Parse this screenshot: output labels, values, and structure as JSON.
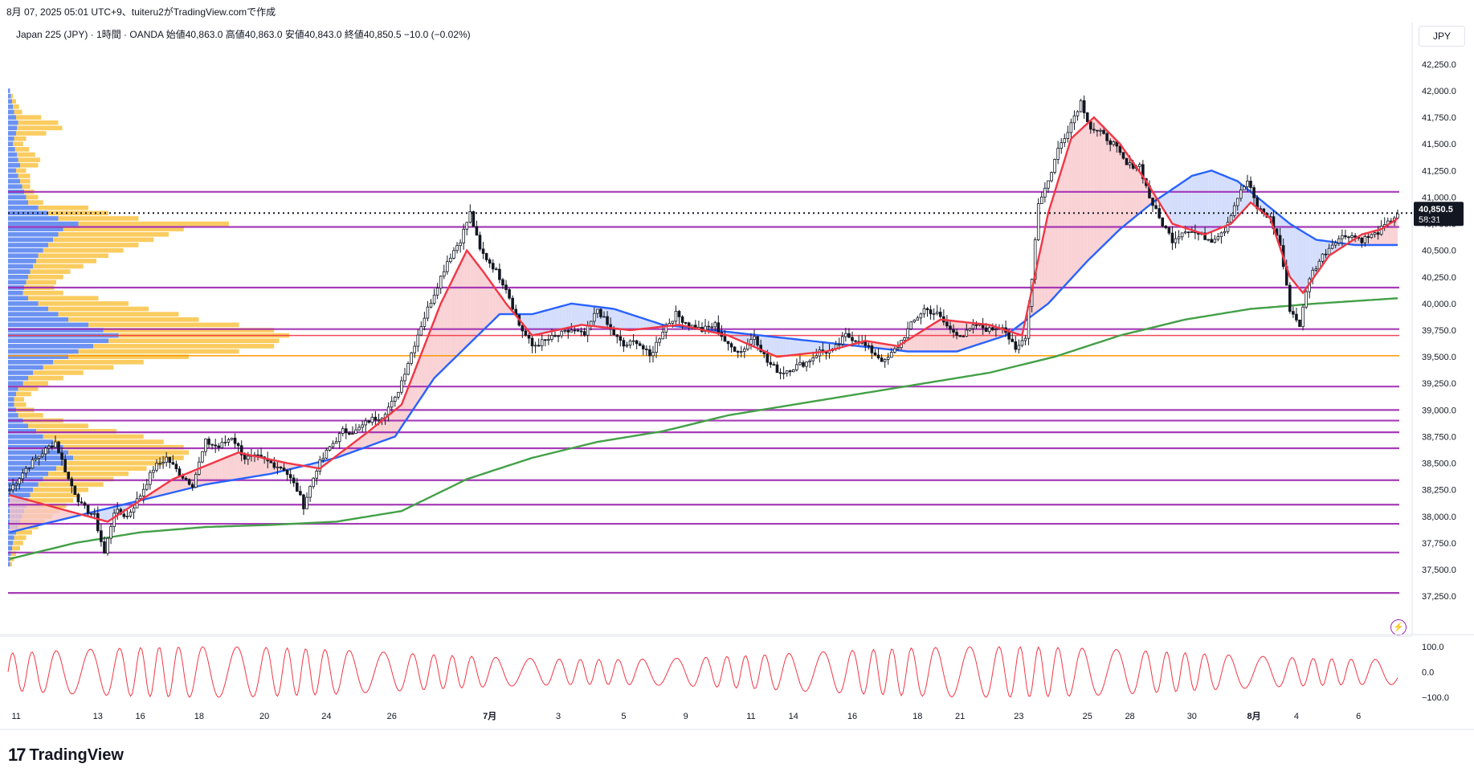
{
  "header": {
    "caption": "8月 07, 2025 05:01 UTC+9、tuiteru2がTradingView.comで作成",
    "info": "Japan 225 (JPY) · 1時間 · OANDA  始値40,863.0  高値40,863.0  安値40,843.0  終値40,850.5  −10.0 (−0.02%)"
  },
  "currency": "JPY",
  "logo": {
    "mark": "17",
    "word": "TradingView"
  },
  "colors": {
    "candle": "#131722",
    "ma_red": "#f23645",
    "ma_blue": "#2962ff",
    "ma_green": "#43a047",
    "fill_red": "#f8c7cb",
    "fill_blue": "#c9d6fb",
    "vp_blue": "#5b86f0",
    "vp_orange": "#f9c74f",
    "hline_purple": "#9c27b0",
    "hline_red": "#f23645",
    "hline_orange": "#ff9800",
    "osc": "#f23645",
    "price_tag": "#131722"
  },
  "chart_data": {
    "type": "candlestick",
    "symbol": "Japan 225 (JPY)",
    "timeframe": "1時間",
    "last_price_label": "40,850.5",
    "countdown": "58:31",
    "ylim": [
      37100,
      42400
    ],
    "y_ticks": [
      "42,250.0",
      "42,000.0",
      "41,750.0",
      "41,500.0",
      "41,250.0",
      "41,000.0",
      "40,750.0",
      "40,500.0",
      "40,250.0",
      "40,000.0",
      "39,750.0",
      "39,500.0",
      "39,250.0",
      "39,000.0",
      "38,750.0",
      "38,500.0",
      "38,250.0",
      "38,000.0",
      "37,750.0",
      "37,500.0",
      "37,250.0"
    ],
    "y_tick_values": [
      42250,
      42000,
      41750,
      41500,
      41250,
      41000,
      40750,
      40500,
      40250,
      40000,
      39750,
      39500,
      39250,
      39000,
      38750,
      38500,
      38250,
      38000,
      37750,
      37500,
      37250
    ],
    "x_ticks": [
      {
        "label": "11",
        "i": 2
      },
      {
        "label": "13",
        "i": 27
      },
      {
        "label": "16",
        "i": 40
      },
      {
        "label": "18",
        "i": 58
      },
      {
        "label": "20",
        "i": 78
      },
      {
        "label": "24",
        "i": 97
      },
      {
        "label": "26",
        "i": 117
      },
      {
        "label": "7月",
        "i": 147
      },
      {
        "label": "3",
        "i": 168
      },
      {
        "label": "5",
        "i": 188
      },
      {
        "label": "9",
        "i": 207
      },
      {
        "label": "11",
        "i": 227
      },
      {
        "label": "14",
        "i": 240
      },
      {
        "label": "16",
        "i": 258
      },
      {
        "label": "18",
        "i": 278
      },
      {
        "label": "21",
        "i": 291
      },
      {
        "label": "23",
        "i": 309
      },
      {
        "label": "25",
        "i": 330
      },
      {
        "label": "28",
        "i": 343
      },
      {
        "label": "30",
        "i": 362
      },
      {
        "label": "8月",
        "i": 381
      },
      {
        "label": "4",
        "i": 394
      },
      {
        "label": "6",
        "i": 413
      }
    ],
    "close_anchors": [
      [
        0,
        38250
      ],
      [
        5,
        38450
      ],
      [
        10,
        38600
      ],
      [
        14,
        38700
      ],
      [
        18,
        38350
      ],
      [
        22,
        38100
      ],
      [
        26,
        38000
      ],
      [
        29,
        37650
      ],
      [
        32,
        38050
      ],
      [
        36,
        38000
      ],
      [
        40,
        38200
      ],
      [
        44,
        38450
      ],
      [
        48,
        38550
      ],
      [
        52,
        38400
      ],
      [
        56,
        38300
      ],
      [
        60,
        38700
      ],
      [
        64,
        38650
      ],
      [
        68,
        38750
      ],
      [
        72,
        38550
      ],
      [
        76,
        38550
      ],
      [
        80,
        38500
      ],
      [
        84,
        38450
      ],
      [
        88,
        38250
      ],
      [
        90,
        38100
      ],
      [
        94,
        38450
      ],
      [
        98,
        38650
      ],
      [
        102,
        38800
      ],
      [
        106,
        38800
      ],
      [
        110,
        38900
      ],
      [
        114,
        38950
      ],
      [
        118,
        39100
      ],
      [
        122,
        39450
      ],
      [
        126,
        39800
      ],
      [
        130,
        40100
      ],
      [
        134,
        40400
      ],
      [
        138,
        40600
      ],
      [
        141,
        40850
      ],
      [
        144,
        40500
      ],
      [
        148,
        40350
      ],
      [
        152,
        40150
      ],
      [
        156,
        39800
      ],
      [
        160,
        39600
      ],
      [
        164,
        39650
      ],
      [
        168,
        39700
      ],
      [
        172,
        39750
      ],
      [
        176,
        39700
      ],
      [
        180,
        39950
      ],
      [
        184,
        39750
      ],
      [
        188,
        39600
      ],
      [
        192,
        39650
      ],
      [
        196,
        39500
      ],
      [
        200,
        39750
      ],
      [
        204,
        39900
      ],
      [
        208,
        39800
      ],
      [
        212,
        39750
      ],
      [
        216,
        39800
      ],
      [
        220,
        39600
      ],
      [
        224,
        39550
      ],
      [
        228,
        39700
      ],
      [
        232,
        39450
      ],
      [
        236,
        39350
      ],
      [
        240,
        39400
      ],
      [
        244,
        39450
      ],
      [
        248,
        39550
      ],
      [
        252,
        39550
      ],
      [
        256,
        39700
      ],
      [
        260,
        39650
      ],
      [
        264,
        39550
      ],
      [
        268,
        39450
      ],
      [
        272,
        39600
      ],
      [
        276,
        39800
      ],
      [
        280,
        39950
      ],
      [
        284,
        39900
      ],
      [
        288,
        39750
      ],
      [
        292,
        39700
      ],
      [
        296,
        39800
      ],
      [
        300,
        39750
      ],
      [
        304,
        39800
      ],
      [
        308,
        39550
      ],
      [
        311,
        39700
      ],
      [
        313,
        40250
      ],
      [
        315,
        40950
      ],
      [
        318,
        41150
      ],
      [
        321,
        41450
      ],
      [
        325,
        41700
      ],
      [
        328,
        41900
      ],
      [
        331,
        41650
      ],
      [
        334,
        41600
      ],
      [
        338,
        41500
      ],
      [
        342,
        41300
      ],
      [
        346,
        41300
      ],
      [
        349,
        41000
      ],
      [
        352,
        40800
      ],
      [
        356,
        40600
      ],
      [
        360,
        40700
      ],
      [
        364,
        40650
      ],
      [
        368,
        40600
      ],
      [
        372,
        40700
      ],
      [
        376,
        41000
      ],
      [
        379,
        41150
      ],
      [
        382,
        40900
      ],
      [
        386,
        40800
      ],
      [
        389,
        40550
      ],
      [
        392,
        39950
      ],
      [
        395,
        39800
      ],
      [
        398,
        40250
      ],
      [
        402,
        40450
      ],
      [
        406,
        40600
      ],
      [
        410,
        40650
      ],
      [
        414,
        40600
      ],
      [
        418,
        40650
      ],
      [
        422,
        40750
      ],
      [
        425,
        40850
      ]
    ],
    "ma_red_anchors": [
      [
        0,
        38200
      ],
      [
        30,
        37950
      ],
      [
        50,
        38350
      ],
      [
        70,
        38600
      ],
      [
        85,
        38500
      ],
      [
        95,
        38450
      ],
      [
        110,
        38800
      ],
      [
        120,
        39050
      ],
      [
        132,
        40000
      ],
      [
        140,
        40500
      ],
      [
        145,
        40300
      ],
      [
        152,
        40000
      ],
      [
        160,
        39700
      ],
      [
        175,
        39800
      ],
      [
        190,
        39750
      ],
      [
        205,
        39800
      ],
      [
        220,
        39700
      ],
      [
        235,
        39500
      ],
      [
        250,
        39550
      ],
      [
        262,
        39650
      ],
      [
        272,
        39600
      ],
      [
        285,
        39850
      ],
      [
        300,
        39800
      ],
      [
        310,
        39700
      ],
      [
        318,
        40850
      ],
      [
        325,
        41550
      ],
      [
        332,
        41750
      ],
      [
        340,
        41500
      ],
      [
        348,
        41150
      ],
      [
        356,
        40750
      ],
      [
        366,
        40650
      ],
      [
        374,
        40750
      ],
      [
        380,
        40950
      ],
      [
        386,
        40800
      ],
      [
        392,
        40250
      ],
      [
        396,
        40100
      ],
      [
        404,
        40450
      ],
      [
        414,
        40650
      ],
      [
        420,
        40700
      ],
      [
        425,
        40800
      ]
    ],
    "ma_blue_anchors": [
      [
        0,
        37850
      ],
      [
        20,
        38000
      ],
      [
        40,
        38150
      ],
      [
        60,
        38300
      ],
      [
        80,
        38400
      ],
      [
        100,
        38550
      ],
      [
        118,
        38750
      ],
      [
        130,
        39300
      ],
      [
        140,
        39600
      ],
      [
        150,
        39900
      ],
      [
        160,
        39900
      ],
      [
        172,
        40000
      ],
      [
        185,
        39950
      ],
      [
        200,
        39800
      ],
      [
        215,
        39750
      ],
      [
        230,
        39700
      ],
      [
        245,
        39650
      ],
      [
        260,
        39600
      ],
      [
        275,
        39550
      ],
      [
        290,
        39550
      ],
      [
        305,
        39700
      ],
      [
        318,
        40000
      ],
      [
        330,
        40400
      ],
      [
        340,
        40700
      ],
      [
        350,
        40950
      ],
      [
        362,
        41200
      ],
      [
        368,
        41250
      ],
      [
        376,
        41150
      ],
      [
        384,
        40950
      ],
      [
        392,
        40750
      ],
      [
        400,
        40600
      ],
      [
        412,
        40550
      ],
      [
        425,
        40550
      ]
    ],
    "ma_green_anchors": [
      [
        0,
        37600
      ],
      [
        20,
        37750
      ],
      [
        40,
        37850
      ],
      [
        60,
        37900
      ],
      [
        80,
        37920
      ],
      [
        100,
        37950
      ],
      [
        120,
        38050
      ],
      [
        140,
        38350
      ],
      [
        160,
        38550
      ],
      [
        180,
        38700
      ],
      [
        200,
        38800
      ],
      [
        220,
        38950
      ],
      [
        240,
        39050
      ],
      [
        260,
        39150
      ],
      [
        280,
        39250
      ],
      [
        300,
        39350
      ],
      [
        320,
        39500
      ],
      [
        340,
        39700
      ],
      [
        360,
        39850
      ],
      [
        380,
        39950
      ],
      [
        400,
        40000
      ],
      [
        425,
        40050
      ]
    ],
    "horizontal_levels": [
      {
        "y": 41050,
        "color": "purple"
      },
      {
        "y": 40720,
        "color": "purple"
      },
      {
        "y": 40150,
        "color": "purple"
      },
      {
        "y": 39760,
        "color": "purple"
      },
      {
        "y": 39700,
        "color": "red"
      },
      {
        "y": 39510,
        "color": "orange"
      },
      {
        "y": 39220,
        "color": "purple"
      },
      {
        "y": 39000,
        "color": "purple"
      },
      {
        "y": 38900,
        "color": "purple"
      },
      {
        "y": 38790,
        "color": "purple"
      },
      {
        "y": 38640,
        "color": "purple"
      },
      {
        "y": 38340,
        "color": "purple"
      },
      {
        "y": 38110,
        "color": "purple"
      },
      {
        "y": 37930,
        "color": "purple"
      },
      {
        "y": 37660,
        "color": "purple"
      },
      {
        "y": 37280,
        "color": "purple"
      }
    ],
    "current_price": 40850.5,
    "oscillator": {
      "ticks": [
        "100.0",
        "0.0",
        "−100.0"
      ],
      "tick_values": [
        100,
        0,
        -100
      ],
      "range": [
        -100,
        100
      ]
    },
    "volume_profile": [
      [
        42000,
        2,
        0
      ],
      [
        41950,
        3,
        2
      ],
      [
        41900,
        4,
        4
      ],
      [
        41850,
        5,
        6
      ],
      [
        41800,
        6,
        8
      ],
      [
        41750,
        8,
        25
      ],
      [
        41700,
        10,
        40
      ],
      [
        41650,
        9,
        45
      ],
      [
        41600,
        8,
        30
      ],
      [
        41550,
        6,
        12
      ],
      [
        41500,
        5,
        10
      ],
      [
        41450,
        7,
        14
      ],
      [
        41400,
        9,
        18
      ],
      [
        41350,
        10,
        22
      ],
      [
        41300,
        12,
        18
      ],
      [
        41250,
        8,
        10
      ],
      [
        41200,
        10,
        12
      ],
      [
        41150,
        12,
        10
      ],
      [
        41100,
        14,
        8
      ],
      [
        41050,
        16,
        10
      ],
      [
        41000,
        18,
        12
      ],
      [
        40950,
        20,
        15
      ],
      [
        40900,
        30,
        50
      ],
      [
        40850,
        40,
        60
      ],
      [
        40800,
        50,
        80
      ],
      [
        40750,
        70,
        150
      ],
      [
        40700,
        55,
        120
      ],
      [
        40650,
        50,
        110
      ],
      [
        40600,
        45,
        100
      ],
      [
        40550,
        40,
        90
      ],
      [
        40500,
        35,
        80
      ],
      [
        40450,
        30,
        70
      ],
      [
        40400,
        28,
        60
      ],
      [
        40350,
        25,
        50
      ],
      [
        40300,
        22,
        40
      ],
      [
        40250,
        20,
        35
      ],
      [
        40200,
        18,
        30
      ],
      [
        40150,
        16,
        30
      ],
      [
        40100,
        15,
        40
      ],
      [
        40050,
        20,
        70
      ],
      [
        40000,
        30,
        90
      ],
      [
        39950,
        40,
        100
      ],
      [
        39900,
        50,
        120
      ],
      [
        39850,
        60,
        130
      ],
      [
        39800,
        80,
        150
      ],
      [
        39750,
        95,
        170
      ],
      [
        39700,
        110,
        170
      ],
      [
        39650,
        100,
        170
      ],
      [
        39600,
        85,
        180
      ],
      [
        39550,
        70,
        160
      ],
      [
        39500,
        60,
        120
      ],
      [
        39450,
        45,
        90
      ],
      [
        39400,
        35,
        70
      ],
      [
        39350,
        25,
        50
      ],
      [
        39300,
        20,
        35
      ],
      [
        39250,
        15,
        25
      ],
      [
        39200,
        10,
        20
      ],
      [
        39150,
        8,
        15
      ],
      [
        39100,
        6,
        10
      ],
      [
        39050,
        6,
        12
      ],
      [
        39000,
        8,
        18
      ],
      [
        38950,
        10,
        25
      ],
      [
        38900,
        15,
        40
      ],
      [
        38850,
        20,
        60
      ],
      [
        38800,
        28,
        80
      ],
      [
        38750,
        35,
        100
      ],
      [
        38700,
        45,
        110
      ],
      [
        38650,
        55,
        120
      ],
      [
        38600,
        60,
        120
      ],
      [
        38550,
        65,
        110
      ],
      [
        38500,
        55,
        100
      ],
      [
        38450,
        48,
        90
      ],
      [
        38400,
        40,
        80
      ],
      [
        38350,
        35,
        70
      ],
      [
        38300,
        30,
        65
      ],
      [
        38250,
        25,
        55
      ],
      [
        38200,
        22,
        50
      ],
      [
        38150,
        20,
        45
      ],
      [
        38100,
        18,
        40
      ],
      [
        38050,
        16,
        35
      ],
      [
        38000,
        14,
        30
      ],
      [
        37950,
        12,
        25
      ],
      [
        37900,
        10,
        20
      ],
      [
        37850,
        8,
        16
      ],
      [
        37800,
        6,
        12
      ],
      [
        37750,
        5,
        10
      ],
      [
        37700,
        4,
        8
      ],
      [
        37650,
        3,
        5
      ],
      [
        37600,
        2,
        4
      ],
      [
        37550,
        2,
        2
      ]
    ]
  }
}
